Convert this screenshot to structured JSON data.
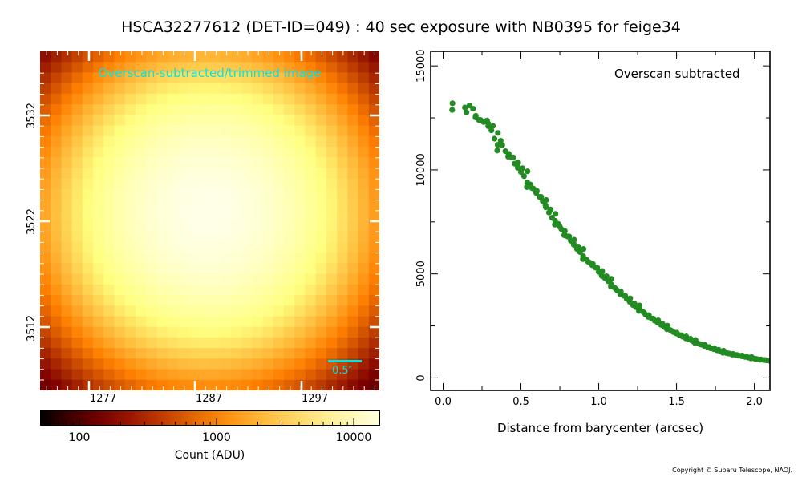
{
  "title": "HSCA32277612 (DET-ID=049) :  40 sec exposure with NB0395 for feige34",
  "image_panel": {
    "caption": "Overscan-subtracted/trimmed image",
    "scalebar_label": "0.5″",
    "x_ticks": [
      "1277",
      "1287",
      "1297"
    ],
    "y_ticks": [
      "3532",
      "3522",
      "3512"
    ],
    "colormap": "afmhot",
    "colorbar": {
      "ticks": [
        "100",
        "1000",
        "10000"
      ],
      "label": "Count (ADU)",
      "scale": "log"
    }
  },
  "chart_data": {
    "type": "scatter",
    "title": "",
    "annotation": "Overscan subtracted",
    "xlabel": "Distance from barycenter (arcsec)",
    "ylabel": "",
    "xlim": [
      -0.08,
      2.1
    ],
    "ylim": [
      -600,
      15700
    ],
    "x_ticks": [
      "0.0",
      "0.5",
      "1.0",
      "1.5",
      "2.0"
    ],
    "y_ticks": [
      "0",
      "5000",
      "10000",
      "15000"
    ],
    "marker_color": "#228b22",
    "series": [
      {
        "x": [
          0.06,
          0.14,
          0.17,
          0.21,
          0.23,
          0.26,
          0.29,
          0.31,
          0.33,
          0.35,
          0.37,
          0.4,
          0.42,
          0.44,
          0.46,
          0.48,
          0.5,
          0.52,
          0.54,
          0.56,
          0.58,
          0.6,
          0.62,
          0.64,
          0.66,
          0.68,
          0.7,
          0.72,
          0.74,
          0.76,
          0.78,
          0.8,
          0.82,
          0.84,
          0.86,
          0.88,
          0.9,
          0.92,
          0.94,
          0.96,
          0.98,
          1.0,
          1.02,
          1.04,
          1.06,
          1.08,
          1.1,
          1.12,
          1.14,
          1.16,
          1.18,
          1.2,
          1.22,
          1.24,
          1.26,
          1.28,
          1.3,
          1.32,
          1.34,
          1.36,
          1.38,
          1.4,
          1.42,
          1.44,
          1.46,
          1.48,
          1.5,
          1.52,
          1.54,
          1.56,
          1.58,
          1.6,
          1.62,
          1.64,
          1.66,
          1.68,
          1.7,
          1.72,
          1.74,
          1.76,
          1.78,
          1.8,
          1.82,
          1.84,
          1.86,
          1.88,
          1.9,
          1.92,
          1.94,
          1.96,
          1.98,
          2.0,
          2.02,
          2.04,
          2.06,
          2.08,
          2.1
        ],
        "y": [
          13200,
          13000,
          13100,
          12600,
          12400,
          12300,
          12100,
          11900,
          11500,
          11200,
          11400,
          10900,
          10700,
          10600,
          10300,
          10100,
          9900,
          9700,
          9400,
          9300,
          9100,
          8950,
          8700,
          8500,
          8200,
          7950,
          7700,
          7550,
          7400,
          7150,
          6900,
          6800,
          6600,
          6400,
          6200,
          6050,
          5850,
          5700,
          5550,
          5450,
          5300,
          5100,
          4900,
          4800,
          4650,
          4500,
          4350,
          4200,
          4050,
          3950,
          3800,
          3650,
          3500,
          3400,
          3300,
          3200,
          3050,
          2950,
          2850,
          2750,
          2650,
          2550,
          2450,
          2400,
          2300,
          2200,
          2150,
          2050,
          1980,
          1900,
          1850,
          1780,
          1720,
          1650,
          1600,
          1550,
          1480,
          1420,
          1380,
          1330,
          1280,
          1240,
          1200,
          1170,
          1130,
          1100,
          1070,
          1040,
          1010,
          980,
          960,
          930,
          900,
          880,
          860,
          840,
          820
        ]
      }
    ]
  }
}
